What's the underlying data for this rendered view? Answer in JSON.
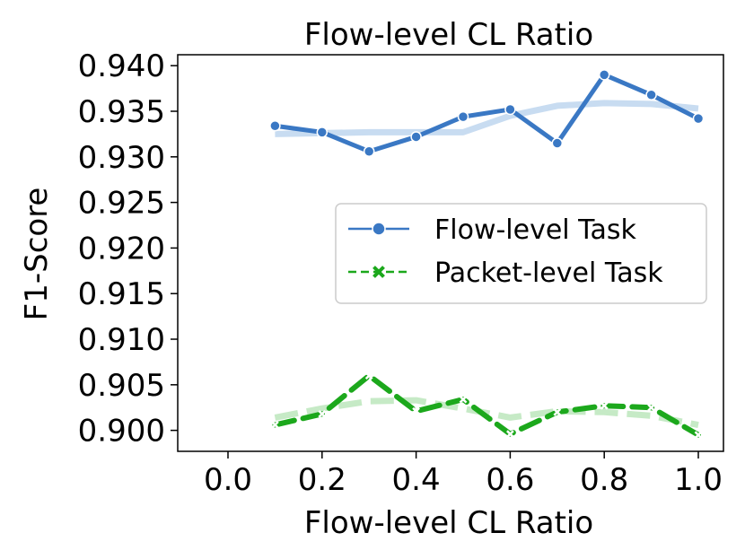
{
  "chart_data": {
    "type": "line",
    "title": "Flow-level CL Ratio",
    "xlabel": "Flow-level CL Ratio",
    "ylabel": "F1-Score",
    "xlim": [
      0.0,
      1.0
    ],
    "ylim": [
      0.8977,
      0.9412
    ],
    "xticks": [
      "0.0",
      "0.2",
      "0.4",
      "0.6",
      "0.8",
      "1.0"
    ],
    "yticks": [
      "0.900",
      "0.905",
      "0.910",
      "0.915",
      "0.920",
      "0.925",
      "0.930",
      "0.935",
      "0.940"
    ],
    "legend_position": "center-right",
    "grid": false,
    "x": [
      0.1,
      0.2,
      0.3,
      0.4,
      0.5,
      0.6,
      0.7,
      0.8,
      0.9,
      1.0
    ],
    "series": [
      {
        "name": "Flow-level Task",
        "color": "#3a78c4",
        "marker": "circle",
        "linestyle": "solid",
        "values": [
          0.9334,
          0.9327,
          0.9306,
          0.9322,
          0.9344,
          0.9352,
          0.9315,
          0.939,
          0.9368,
          0.9342
        ],
        "trend": [
          0.9325,
          0.9326,
          0.9327,
          0.9327,
          0.9327,
          0.9345,
          0.9356,
          0.9359,
          0.9358,
          0.9353
        ]
      },
      {
        "name": "Packet-level Task",
        "color": "#1ca81c",
        "marker": "x",
        "linestyle": "dashed",
        "values": [
          0.9006,
          0.9018,
          0.906,
          0.9021,
          0.9034,
          0.8996,
          0.902,
          0.9027,
          0.9025,
          0.8995
        ],
        "trend": [
          0.9014,
          0.9024,
          0.9032,
          0.9033,
          0.9024,
          0.9014,
          0.9021,
          0.902,
          0.9016,
          0.9006
        ]
      }
    ]
  }
}
